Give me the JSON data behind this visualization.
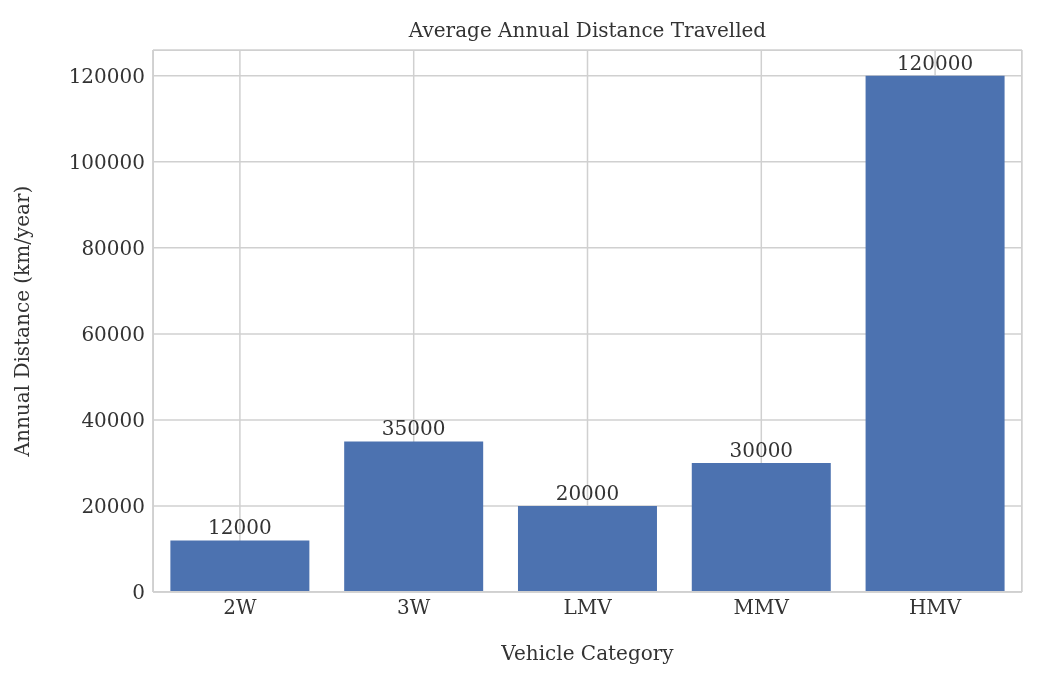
{
  "chart_data": {
    "type": "bar",
    "title": "Average Annual Distance Travelled",
    "xlabel": "Vehicle Category",
    "ylabel": "Annual Distance (km/year)",
    "categories": [
      "2W",
      "3W",
      "LMV",
      "MMV",
      "HMV"
    ],
    "values": [
      12000,
      35000,
      20000,
      30000,
      120000
    ],
    "color": "#4c72b0",
    "ylim": [
      0,
      126000
    ],
    "yticks": [
      0,
      20000,
      40000,
      60000,
      80000,
      100000,
      120000
    ],
    "grid": true,
    "data_labels": true
  }
}
